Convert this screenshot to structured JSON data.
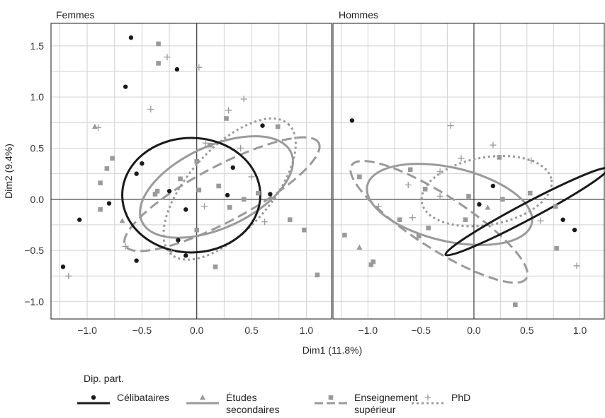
{
  "chart_data": {
    "type": "scatter",
    "xlabel": "Dim1 (11.8%)",
    "ylabel": "Dim2 (9.4%)",
    "xlim": [
      -1.33,
      1.23
    ],
    "ylim": [
      -1.17,
      1.72
    ],
    "x_ticks": [
      -1.0,
      -0.5,
      0.0,
      0.5,
      1.0
    ],
    "x_tick_labels": [
      "−1.0",
      "−0.5",
      "0.0",
      "0.5",
      "1.0"
    ],
    "y_ticks": [
      -1.0,
      -0.5,
      0.0,
      0.5,
      1.0,
      1.5
    ],
    "y_tick_labels": [
      "−1.0",
      "−0.5",
      "0.0",
      "0.5",
      "1.0",
      "1.5"
    ],
    "grid": true,
    "legend": {
      "title": "Dip. part.",
      "placement": "bottom",
      "entries": [
        {
          "label_lines": [
            "Célibataires"
          ],
          "color": "#1a1a1a",
          "dash": "solid",
          "marker": "circle"
        },
        {
          "label_lines": [
            "Études",
            "secondaires"
          ],
          "color": "#9a9a9a",
          "dash": "solid",
          "marker": "triangle"
        },
        {
          "label_lines": [
            "Enseignement",
            "supérieur"
          ],
          "color": "#9a9a9a",
          "dash": "dashed",
          "marker": "square"
        },
        {
          "label_lines": [
            "PhD"
          ],
          "color": "#9a9a9a",
          "dash": "dotted",
          "marker": "plus"
        }
      ]
    },
    "panels": [
      {
        "title": "Femmes",
        "groups": [
          {
            "name": "Célibataires",
            "marker": "circle",
            "color": "#1a1a1a",
            "points": [
              [
                -0.6,
                1.58
              ],
              [
                -0.65,
                1.1
              ],
              [
                -0.18,
                1.27
              ],
              [
                0.6,
                0.72
              ],
              [
                -0.5,
                0.35
              ],
              [
                -0.55,
                0.25
              ],
              [
                0.33,
                0.31
              ],
              [
                0.67,
                0.05
              ],
              [
                -0.8,
                -0.04
              ],
              [
                -1.07,
                -0.2
              ],
              [
                -0.1,
                -0.1
              ],
              [
                -0.17,
                -0.4
              ],
              [
                -0.55,
                -0.6
              ],
              [
                -0.1,
                -0.55
              ],
              [
                -1.22,
                -0.66
              ],
              [
                -0.25,
                0.08
              ],
              [
                0.28,
                0.04
              ]
            ],
            "ellipse": {
              "cx": -0.05,
              "cy": 0.04,
              "rx": 0.63,
              "ry": 0.56,
              "angle_deg": 0,
              "dash": "solid",
              "color": "#1a1a1a"
            }
          },
          {
            "name": "Études secondaires",
            "marker": "triangle",
            "color": "#9a9a9a",
            "points": [
              [
                -0.93,
                0.71
              ],
              [
                -0.68,
                -0.21
              ]
            ],
            "ellipse": {
              "cx": 0.18,
              "cy": 0.12,
              "rx": 0.75,
              "ry": 0.4,
              "angle_deg": -25,
              "dash": "solid",
              "color": "#9a9a9a"
            }
          },
          {
            "name": "Enseignement supérieur",
            "marker": "square",
            "color": "#9a9a9a",
            "points": [
              [
                -0.35,
                1.52
              ],
              [
                -0.35,
                1.33
              ],
              [
                0.27,
                0.79
              ],
              [
                0.74,
                0.71
              ],
              [
                0.12,
                0.53
              ],
              [
                -0.77,
                0.4
              ],
              [
                -0.82,
                0.3
              ],
              [
                -0.88,
                0.16
              ],
              [
                -0.36,
                0.08
              ],
              [
                -0.15,
                0.2
              ],
              [
                0.0,
                0.37
              ],
              [
                0.2,
                0.13
              ],
              [
                0.02,
                0.09
              ],
              [
                0.3,
                -0.08
              ],
              [
                0.56,
                0.06
              ],
              [
                0.43,
                0.0
              ],
              [
                0.0,
                -0.3
              ],
              [
                -0.88,
                -0.1
              ],
              [
                0.85,
                -0.2
              ],
              [
                0.98,
                -0.3
              ],
              [
                1.1,
                -0.74
              ],
              [
                0.17,
                -0.66
              ],
              [
                -0.38,
                0.05
              ]
            ],
            "ellipse": {
              "cx": 0.23,
              "cy": 0.05,
              "rx": 1.0,
              "ry": 0.27,
              "angle_deg": -28,
              "dash": "dashed",
              "color": "#9a9a9a"
            }
          },
          {
            "name": "PhD",
            "marker": "plus",
            "color": "#9a9a9a",
            "points": [
              [
                -0.27,
                1.39
              ],
              [
                0.02,
                1.29
              ],
              [
                -0.42,
                0.88
              ],
              [
                0.43,
                0.98
              ],
              [
                0.29,
                0.87
              ],
              [
                -0.9,
                0.7
              ],
              [
                0.08,
                0.55
              ],
              [
                0.5,
                0.22
              ],
              [
                0.07,
                -0.07
              ],
              [
                0.62,
                -0.22
              ],
              [
                -0.65,
                -0.46
              ],
              [
                -1.17,
                -0.75
              ],
              [
                -0.23,
                -0.51
              ],
              [
                0.4,
                0.5
              ]
            ],
            "ellipse": {
              "cx": 0.3,
              "cy": 0.1,
              "rx": 0.8,
              "ry": 0.4,
              "angle_deg": -48,
              "dash": "dotted",
              "color": "#9a9a9a"
            }
          }
        ]
      },
      {
        "title": "Hommes",
        "groups": [
          {
            "name": "Célibataires",
            "marker": "circle",
            "color": "#1a1a1a",
            "points": [
              [
                -1.15,
                0.77
              ],
              [
                0.18,
                0.13
              ],
              [
                0.05,
                -0.05
              ],
              [
                0.84,
                -0.2
              ],
              [
                0.95,
                -0.3
              ]
            ],
            "ellipse": {
              "cx": 0.5,
              "cy": -0.12,
              "rx": 0.84,
              "ry": 0.08,
              "angle_deg": -28,
              "dash": "solid",
              "color": "#1a1a1a"
            }
          },
          {
            "name": "Études secondaires",
            "marker": "triangle",
            "color": "#9a9a9a",
            "points": [
              [
                -1.08,
                -0.47
              ],
              [
                0.13,
                -0.08
              ]
            ],
            "ellipse": {
              "cx": -0.23,
              "cy": -0.05,
              "rx": 0.77,
              "ry": 0.36,
              "angle_deg": 13,
              "dash": "solid",
              "color": "#9a9a9a"
            }
          },
          {
            "name": "Enseignement supérieur",
            "marker": "square",
            "color": "#9a9a9a",
            "points": [
              [
                -1.08,
                0.22
              ],
              [
                -0.6,
                0.29
              ],
              [
                -0.46,
                0.1
              ],
              [
                0.24,
                0.41
              ],
              [
                0.53,
                0.06
              ],
              [
                -0.7,
                -0.2
              ],
              [
                -0.43,
                -0.28
              ],
              [
                -0.08,
                -0.2
              ],
              [
                0.77,
                -0.07
              ],
              [
                0.78,
                -0.48
              ],
              [
                -1.22,
                -0.35
              ],
              [
                -0.97,
                -0.64
              ],
              [
                -0.95,
                -0.61
              ],
              [
                -0.52,
                -0.36
              ],
              [
                0.39,
                -1.03
              ],
              [
                -0.05,
                0.03
              ],
              [
                0.27,
                0.0
              ]
            ],
            "ellipse": {
              "cx": -0.33,
              "cy": -0.22,
              "rx": 0.95,
              "ry": 0.26,
              "angle_deg": 33,
              "dash": "dashed",
              "color": "#9a9a9a"
            }
          },
          {
            "name": "PhD",
            "marker": "plus",
            "color": "#9a9a9a",
            "points": [
              [
                -0.22,
                0.72
              ],
              [
                0.18,
                0.53
              ],
              [
                0.54,
                0.38
              ],
              [
                -0.12,
                0.4
              ],
              [
                -0.62,
                0.14
              ],
              [
                -0.9,
                -0.07
              ],
              [
                -0.32,
                0.03
              ],
              [
                -0.58,
                -0.18
              ],
              [
                0.63,
                -0.21
              ],
              [
                0.97,
                -0.65
              ],
              [
                -0.32,
                0.27
              ]
            ],
            "ellipse": {
              "cx": 0.12,
              "cy": 0.08,
              "rx": 0.6,
              "ry": 0.33,
              "angle_deg": -10,
              "dash": "dotted",
              "color": "#9a9a9a"
            }
          }
        ]
      }
    ]
  }
}
